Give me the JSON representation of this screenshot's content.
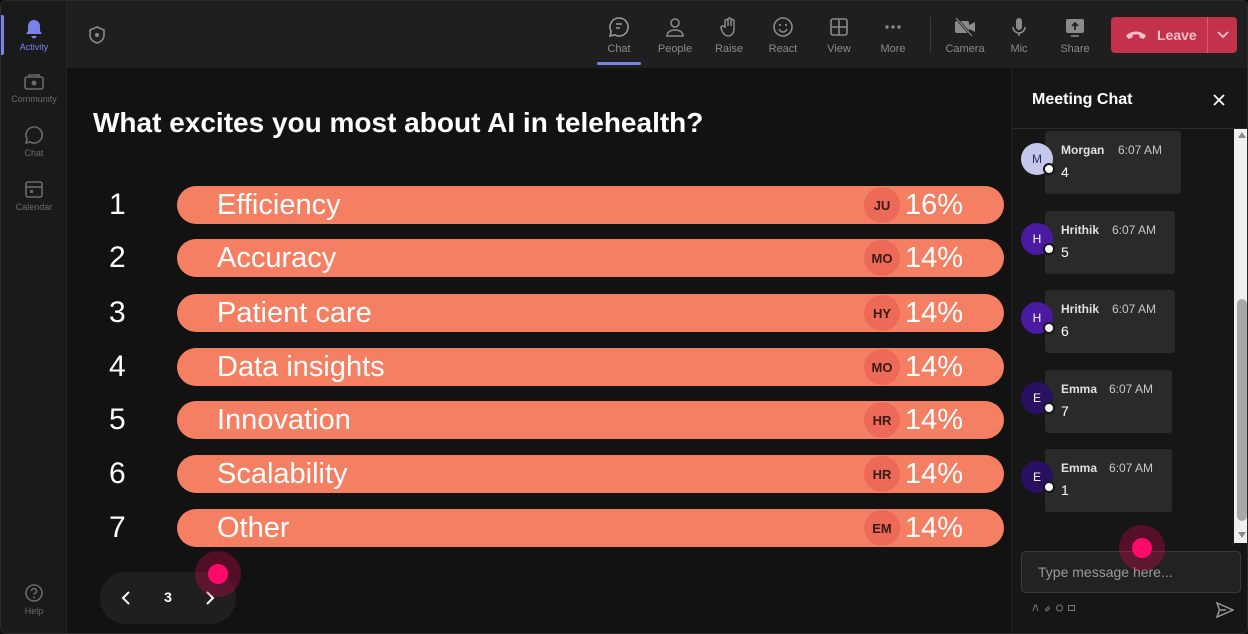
{
  "rail": {
    "items": [
      {
        "label": "Activity",
        "icon": "bell-icon",
        "active": true
      },
      {
        "label": "Community",
        "icon": "community-icon",
        "active": false
      },
      {
        "label": "Chat",
        "icon": "chat-icon",
        "active": false
      },
      {
        "label": "Calendar",
        "icon": "calendar-icon",
        "active": false
      }
    ],
    "help_label": "Help"
  },
  "toolbar": {
    "buttons": [
      {
        "label": "Chat",
        "icon": "chat-icon",
        "active": true
      },
      {
        "label": "People",
        "icon": "people-icon",
        "active": false
      },
      {
        "label": "Raise",
        "icon": "hand-icon",
        "active": false
      },
      {
        "label": "React",
        "icon": "smiley-icon",
        "active": false
      },
      {
        "label": "View",
        "icon": "grid-icon",
        "active": false
      },
      {
        "label": "More",
        "icon": "more-icon",
        "active": false
      },
      {
        "label": "Camera",
        "icon": "camera-off-icon",
        "active": false
      },
      {
        "label": "Mic",
        "icon": "mic-icon",
        "active": false
      },
      {
        "label": "Share",
        "icon": "share-icon",
        "active": false
      }
    ],
    "leave_label": "Leave",
    "leave_color": "#c4314b"
  },
  "poll": {
    "question": "What excites you most about AI in telehealth?",
    "bar_color": "#f47f63",
    "options": [
      {
        "rank": "1",
        "label": "Efficiency",
        "initials": "JU",
        "percent": "16%"
      },
      {
        "rank": "2",
        "label": "Accuracy",
        "initials": "MO",
        "percent": "14%"
      },
      {
        "rank": "3",
        "label": "Patient care",
        "initials": "HY",
        "percent": "14%"
      },
      {
        "rank": "4",
        "label": "Data insights",
        "initials": "MO",
        "percent": "14%"
      },
      {
        "rank": "5",
        "label": "Innovation",
        "initials": "HR",
        "percent": "14%"
      },
      {
        "rank": "6",
        "label": "Scalability",
        "initials": "HR",
        "percent": "14%"
      },
      {
        "rank": "7",
        "label": "Other",
        "initials": "EM",
        "percent": "14%"
      }
    ]
  },
  "pager": {
    "page": "3"
  },
  "chat": {
    "title": "Meeting Chat",
    "placeholder": "Type message here...",
    "messages": [
      {
        "author": "Morgan",
        "initial": "M",
        "time": "6:07 AM",
        "text": "4",
        "avatar_bg": "#c5c8ec",
        "avatar_fg": "#2a2a5a"
      },
      {
        "author": "Hrithik",
        "initial": "H",
        "time": "6:07 AM",
        "text": "5",
        "avatar_bg": "#4a1aa0",
        "avatar_fg": "#ffffff"
      },
      {
        "author": "Hrithik",
        "initial": "H",
        "time": "6:07 AM",
        "text": "6",
        "avatar_bg": "#4a1aa0",
        "avatar_fg": "#ffffff"
      },
      {
        "author": "Emma",
        "initial": "E",
        "time": "6:07 AM",
        "text": "7",
        "avatar_bg": "#2a1060",
        "avatar_fg": "#ffffff"
      },
      {
        "author": "Emma",
        "initial": "E",
        "time": "6:07 AM",
        "text": "1",
        "avatar_bg": "#2a1060",
        "avatar_fg": "#ffffff"
      }
    ]
  }
}
